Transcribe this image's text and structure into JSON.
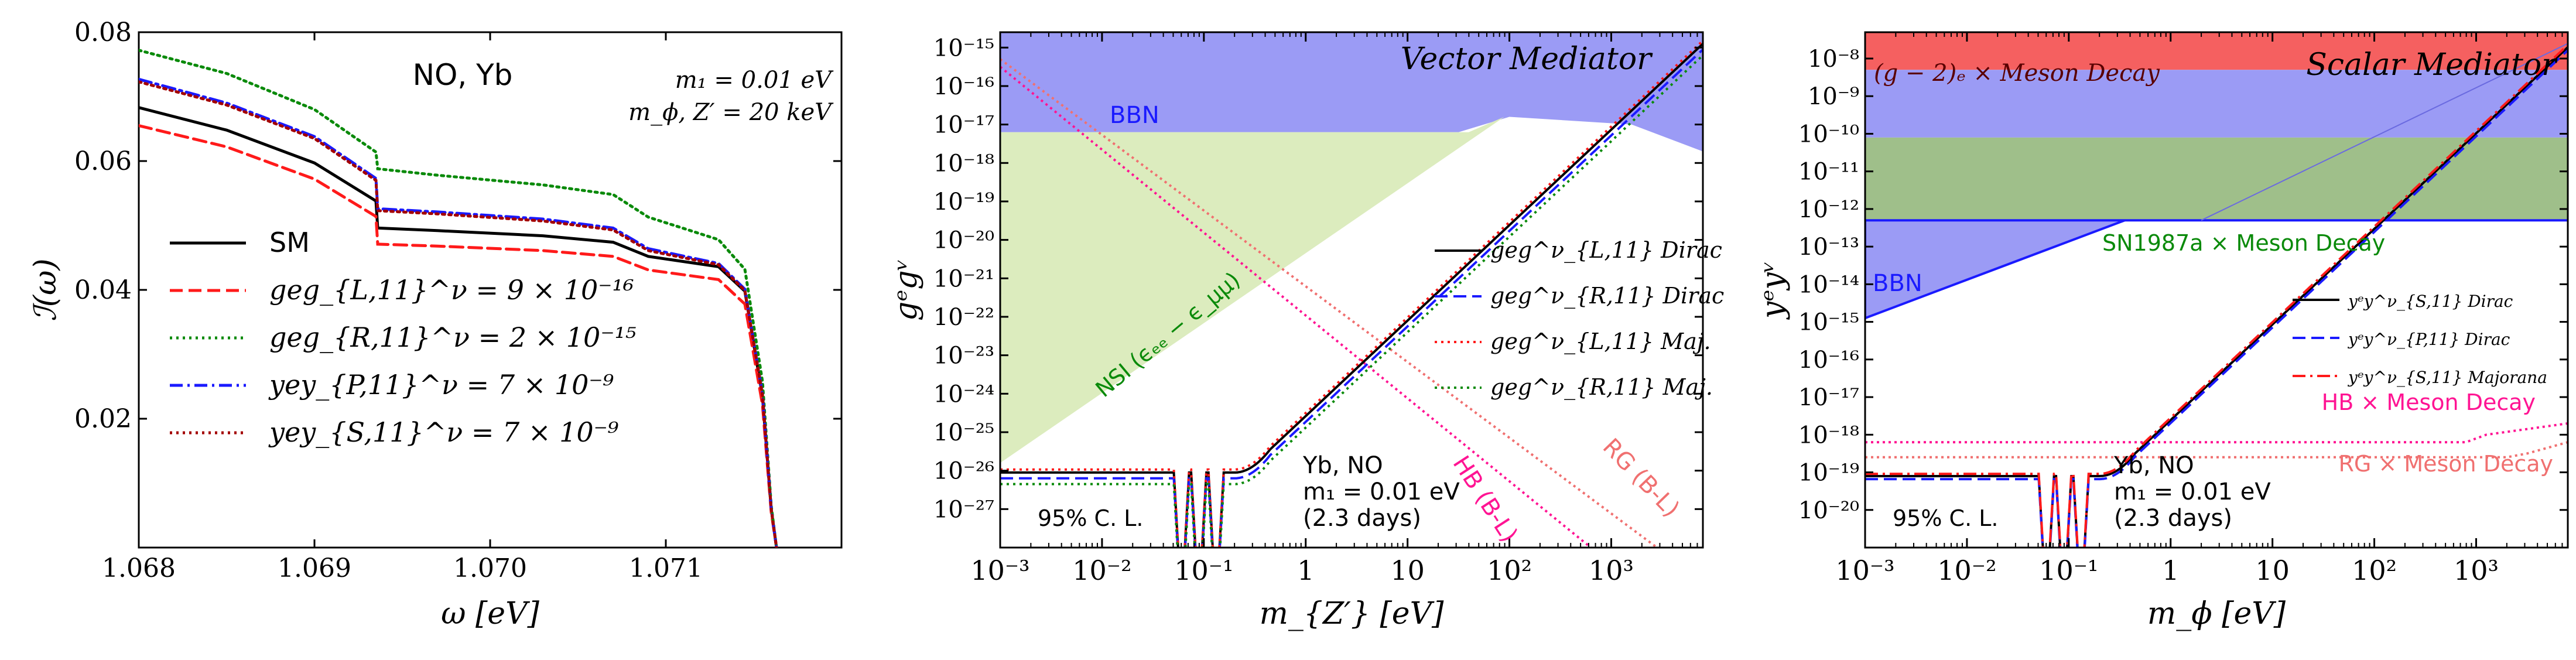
{
  "colors": {
    "black": "#000000",
    "red": "#ff1a1a",
    "green": "#0a8a0a",
    "blue": "#1a1aff",
    "darkred": "#a30000",
    "magenta": "#ff1493",
    "salmon": "#f07070",
    "bbn_fill": "#9b9bf5",
    "nsi_fill": "#dcecbe",
    "gm2_fill": "#f56060",
    "sn_fill": "#9fbf8a"
  },
  "chart_data": [
    {
      "type": "line",
      "title": "NO, Yb",
      "xlabel": "ω [eV]",
      "ylabel": "ℐ(ω)",
      "xlim": [
        1.068,
        1.072
      ],
      "ylim": [
        0.0,
        0.08
      ],
      "xticks": [
        "1.068",
        "1.069",
        "1.070",
        "1.071"
      ],
      "yticks": [
        "0.02",
        "0.04",
        "0.06",
        "0.08"
      ],
      "annotations": [
        "m₁ = 0.01 eV",
        "m_ϕ, Z′ = 20 keV"
      ],
      "legend_location": "left",
      "series": [
        {
          "name": "SM",
          "style": "solid",
          "color": "black",
          "label": "SM",
          "x": [
            1.068,
            1.0685,
            1.069,
            1.06935,
            1.06936,
            1.0697,
            1.0703,
            1.0707,
            1.0709,
            1.0713,
            1.07145,
            1.07155,
            1.0716,
            1.07163
          ],
          "y": [
            0.0683,
            0.0648,
            0.0597,
            0.0538,
            0.0496,
            0.0492,
            0.0484,
            0.0474,
            0.0452,
            0.0436,
            0.0398,
            0.0235,
            0.006,
            0.0
          ]
        },
        {
          "name": "red dashed",
          "style": "dashed",
          "color": "red",
          "label": "geg_{L,11}^ν = 9 × 10⁻¹⁶",
          "x": [
            1.068,
            1.0685,
            1.069,
            1.06935,
            1.06936,
            1.0697,
            1.0703,
            1.0707,
            1.0709,
            1.0713,
            1.07145,
            1.07155,
            1.0716,
            1.07163
          ],
          "y": [
            0.0655,
            0.0622,
            0.0572,
            0.0514,
            0.0471,
            0.0468,
            0.0461,
            0.0452,
            0.0431,
            0.0416,
            0.0378,
            0.0222,
            0.0055,
            0.0
          ]
        },
        {
          "name": "green dotted",
          "style": "dotted",
          "color": "green",
          "label": "geg_{R,11}^ν = 2 × 10⁻¹⁵",
          "x": [
            1.068,
            1.0685,
            1.069,
            1.06935,
            1.06936,
            1.0697,
            1.0703,
            1.0707,
            1.0709,
            1.0713,
            1.07145,
            1.07155,
            1.0716,
            1.07163
          ],
          "y": [
            0.0772,
            0.0736,
            0.068,
            0.0614,
            0.0588,
            0.0578,
            0.0563,
            0.0548,
            0.0513,
            0.0478,
            0.0432,
            0.0258,
            0.0065,
            0.0
          ]
        },
        {
          "name": "blue dashdot",
          "style": "dashdot",
          "color": "blue",
          "label": "yey_{P,11}^ν = 7 × 10⁻⁹",
          "x": [
            1.068,
            1.0685,
            1.069,
            1.06935,
            1.06936,
            1.0697,
            1.0703,
            1.0707,
            1.0709,
            1.0713,
            1.07145,
            1.07155,
            1.0716,
            1.07163
          ],
          "y": [
            0.0727,
            0.069,
            0.0638,
            0.0573,
            0.0526,
            0.0521,
            0.051,
            0.0496,
            0.0464,
            0.0441,
            0.0401,
            0.0238,
            0.006,
            0.0
          ]
        },
        {
          "name": "darkred dotted",
          "style": "dotted",
          "color": "darkred",
          "label": "yey_{S,11}^ν = 7 × 10⁻⁹",
          "x": [
            1.068,
            1.0685,
            1.069,
            1.06935,
            1.06936,
            1.0697,
            1.0703,
            1.0707,
            1.0709,
            1.0713,
            1.07145,
            1.07155,
            1.0716,
            1.07163
          ],
          "y": [
            0.0723,
            0.0687,
            0.0635,
            0.057,
            0.0523,
            0.0518,
            0.0507,
            0.0493,
            0.0461,
            0.0439,
            0.0399,
            0.0237,
            0.006,
            0.0
          ]
        }
      ]
    },
    {
      "type": "line",
      "title": "Vector Mediator",
      "xlabel": "m_{Z′} [eV]",
      "ylabel": "gᵉgᵛ",
      "xscale": "log",
      "yscale": "log",
      "xlim_log10": [
        -3,
        3.9
      ],
      "ylim_log10": [
        -28,
        -14.6
      ],
      "xticks": [
        "10⁻³",
        "10⁻²",
        "10⁻¹",
        "1",
        "10",
        "10²",
        "10³"
      ],
      "yticks": [
        "10⁻¹⁵",
        "10⁻¹⁶",
        "10⁻¹⁷",
        "10⁻¹⁸",
        "10⁻¹⁹",
        "10⁻²⁰",
        "10⁻²¹",
        "10⁻²²",
        "10⁻²³",
        "10⁻²⁴",
        "10⁻²⁵",
        "10⁻²⁶",
        "10⁻²⁷"
      ],
      "regions": [
        {
          "name": "BBN",
          "label": "BBN",
          "color": "bbn_fill",
          "log_boundary": [
            [
              -3,
              -17.2
            ],
            [
              1.5,
              -17.2
            ],
            [
              2.0,
              -16.8
            ],
            [
              3.2,
              -17.0
            ],
            [
              3.9,
              -17.7
            ]
          ]
        },
        {
          "name": "NSI",
          "label": "NSI (ϵₑₑ − ϵ_μμ)",
          "color": "nsi_fill",
          "log_polygon": [
            [
              -3,
              -17.2
            ],
            [
              1.6,
              -17.2
            ],
            [
              1.95,
              -16.8
            ],
            [
              -3,
              -25.8
            ]
          ]
        }
      ],
      "lines": [
        {
          "name": "HB (B-L)",
          "label": "HB (B-L)",
          "color": "magenta",
          "style": "dotted",
          "log_points": [
            [
              -3,
              -15.5
            ],
            [
              2.8,
              -28
            ]
          ]
        },
        {
          "name": "RG (B-L)",
          "label": "RG (B-L)",
          "color": "salmon",
          "style": "dotted",
          "log_points": [
            [
              -3,
              -15.3
            ],
            [
              3.45,
              -28
            ]
          ]
        }
      ],
      "series": [
        {
          "name": "geg_{L,11} Dirac",
          "label": "geg^ν_{L,11} Dirac",
          "color": "black",
          "style": "solid",
          "offset": 0.0
        },
        {
          "name": "geg_{R,11} Dirac",
          "label": "geg^ν_{R,11} Dirac",
          "color": "blue",
          "style": "dashed",
          "offset": -0.15
        },
        {
          "name": "geg_{L,11} Maj.",
          "label": "geg^ν_{L,11} Maj.",
          "color": "red",
          "style": "dotted",
          "offset": 0.08
        },
        {
          "name": "geg_{R,11} Maj.",
          "label": "geg^ν_{R,11} Maj.",
          "color": "green",
          "style": "dotted",
          "offset": -0.3
        }
      ],
      "curve_shape": {
        "flat_log_y": -26.05,
        "dips_log_x": [
          -1.22,
          -1.05,
          -0.88
        ],
        "knee_log_x": -0.7,
        "end_log": [
          3.9,
          -14.9
        ]
      },
      "annotations": [
        "95% C. L.",
        "Yb, NO",
        "m₁ = 0.01 eV",
        "(2.3 days)"
      ]
    },
    {
      "type": "line",
      "title": "Scalar Mediator",
      "xlabel": "m_ϕ [eV]",
      "ylabel": "yᵉyᵛ",
      "xscale": "log",
      "yscale": "log",
      "xlim_log10": [
        -3,
        3.9
      ],
      "ylim_log10": [
        -21,
        -7.3
      ],
      "xticks": [
        "10⁻³",
        "10⁻²",
        "10⁻¹",
        "1",
        "10",
        "10²",
        "10³"
      ],
      "yticks": [
        "10⁻⁸",
        "10⁻⁹",
        "10⁻¹⁰",
        "10⁻¹¹",
        "10⁻¹²",
        "10⁻¹³",
        "10⁻¹⁴",
        "10⁻¹⁵",
        "10⁻¹⁶",
        "10⁻¹⁷",
        "10⁻¹⁸",
        "10⁻¹⁹",
        "10⁻²⁰"
      ],
      "regions": [
        {
          "name": "(g-2)_e × Meson Decay",
          "label": "(g − 2)ₑ × Meson Decay",
          "color": "gm2_fill",
          "log_y_range": [
            -8.3,
            -7.3
          ]
        },
        {
          "name": "BBN band",
          "label": "BBN",
          "color": "bbn_fill",
          "log_y_range": [
            -10.1,
            -8.3
          ]
        },
        {
          "name": "SN1987a × Meson Decay",
          "label": "SN1987a × Meson Decay",
          "color": "sn_fill",
          "log_y_range": [
            -12.3,
            -10.1
          ]
        },
        {
          "name": "BBN wedge",
          "label": "BBN",
          "color": "bbn_fill",
          "log_polygon": [
            [
              -3,
              -14.9
            ],
            [
              -0.45,
              -12.3
            ],
            [
              -3,
              -12.3
            ]
          ]
        }
      ],
      "lines": [
        {
          "name": "HB × Meson Decay",
          "label": "HB × Meson Decay",
          "color": "magenta",
          "style": "dotted",
          "log_points": [
            [
              -3,
              -18.2
            ],
            [
              2.9,
              -18.2
            ],
            [
              3.1,
              -18.0
            ],
            [
              3.9,
              -17.7
            ]
          ]
        },
        {
          "name": "RG × Meson Decay",
          "label": "RG × Meson Decay",
          "color": "salmon",
          "style": "dotted",
          "log_points": [
            [
              -3,
              -18.6
            ],
            [
              3.3,
              -18.6
            ],
            [
              3.5,
              -18.5
            ],
            [
              3.9,
              -18.2
            ]
          ]
        }
      ],
      "series": [
        {
          "name": "yey_{S,11} Dirac",
          "label": "yᵉy^ν_{S,11} Dirac",
          "color": "black",
          "style": "solid",
          "offset": 0.0
        },
        {
          "name": "yey_{P,11} Dirac",
          "label": "yᵉy^ν_{P,11} Dirac",
          "color": "blue",
          "style": "dashed",
          "offset": -0.08
        },
        {
          "name": "yey_{S,11} Majorana",
          "label": "yᵉy^ν_{S,11} Majorana",
          "color": "red",
          "style": "dashdot",
          "offset": 0.06
        }
      ],
      "curve_shape": {
        "flat_log_y": -19.1,
        "dips_log_x": [
          -1.22,
          -1.05,
          -0.88
        ],
        "knee_log_x": -0.7,
        "end_log": [
          3.9,
          -7.7
        ]
      },
      "annotations": [
        "95% C. L.",
        "Yb, NO",
        "m₁ = 0.01 eV",
        "(2.3 days)"
      ]
    }
  ]
}
